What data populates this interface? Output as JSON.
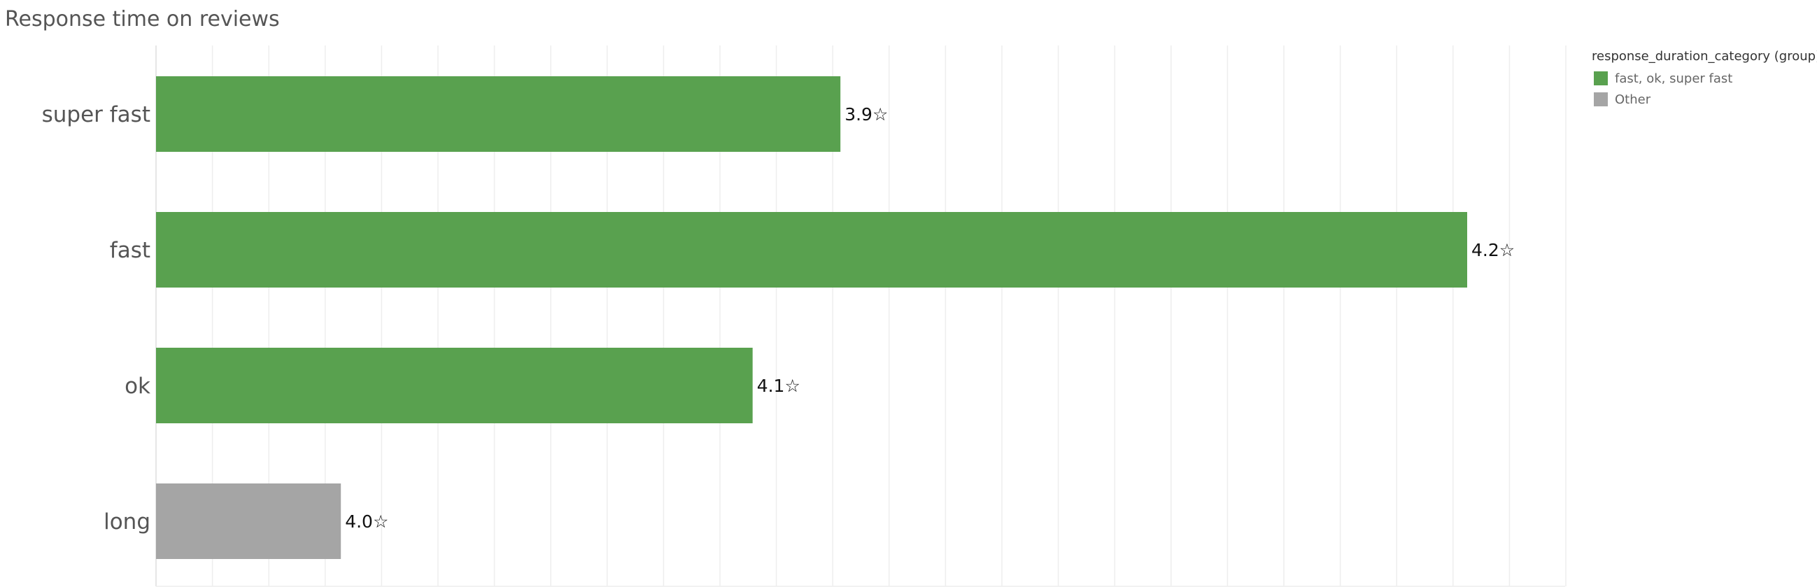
{
  "chart_data": {
    "type": "bar",
    "orientation": "horizontal",
    "title": "Response time on reviews",
    "categories": [
      "super fast",
      "fast",
      "ok",
      "long"
    ],
    "values": [
      0.522,
      1.0,
      0.455,
      0.141
    ],
    "data_labels": [
      "3.9☆",
      "4.2☆",
      "4.1☆",
      "4.0☆"
    ],
    "bar_groups": [
      "fast, ok, super fast",
      "fast, ok, super fast",
      "fast, ok, super fast",
      "Other"
    ],
    "xlabel": "",
    "ylabel": "",
    "grid": true,
    "legend": {
      "title": "response_duration_category (group)",
      "position": "top-right",
      "items": [
        {
          "label": "fast, ok, super fast",
          "color": "#59a14f"
        },
        {
          "label": "Other",
          "color": "#a5a5a5"
        }
      ]
    }
  }
}
